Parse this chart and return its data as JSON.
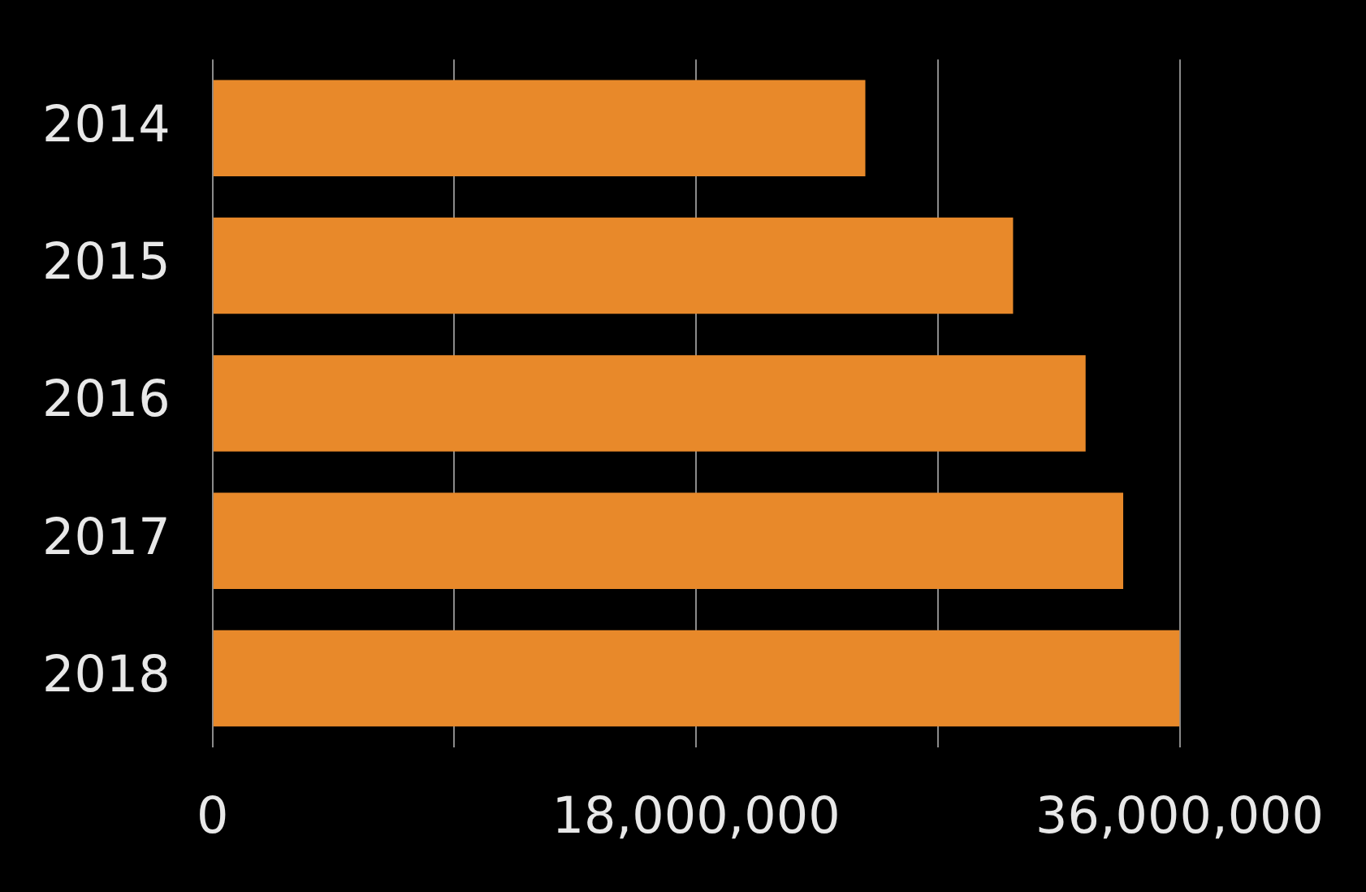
{
  "chart_data": {
    "type": "bar",
    "orientation": "horizontal",
    "categories": [
      "2014",
      "2015",
      "2016",
      "2017",
      "2018"
    ],
    "values": [
      24300000,
      29800000,
      32500000,
      33900000,
      36000000
    ],
    "color": "#e8892a",
    "xlim": [
      0,
      36000000
    ],
    "xticks": [
      0,
      {
        "value": 9000000,
        "label": null
      },
      {
        "value": 18000000,
        "label": "18,000,000"
      },
      {
        "value": 27000000,
        "label": null
      },
      {
        "value": 36000000,
        "label": "36,000,000"
      }
    ],
    "grid": "x",
    "legend": false
  }
}
